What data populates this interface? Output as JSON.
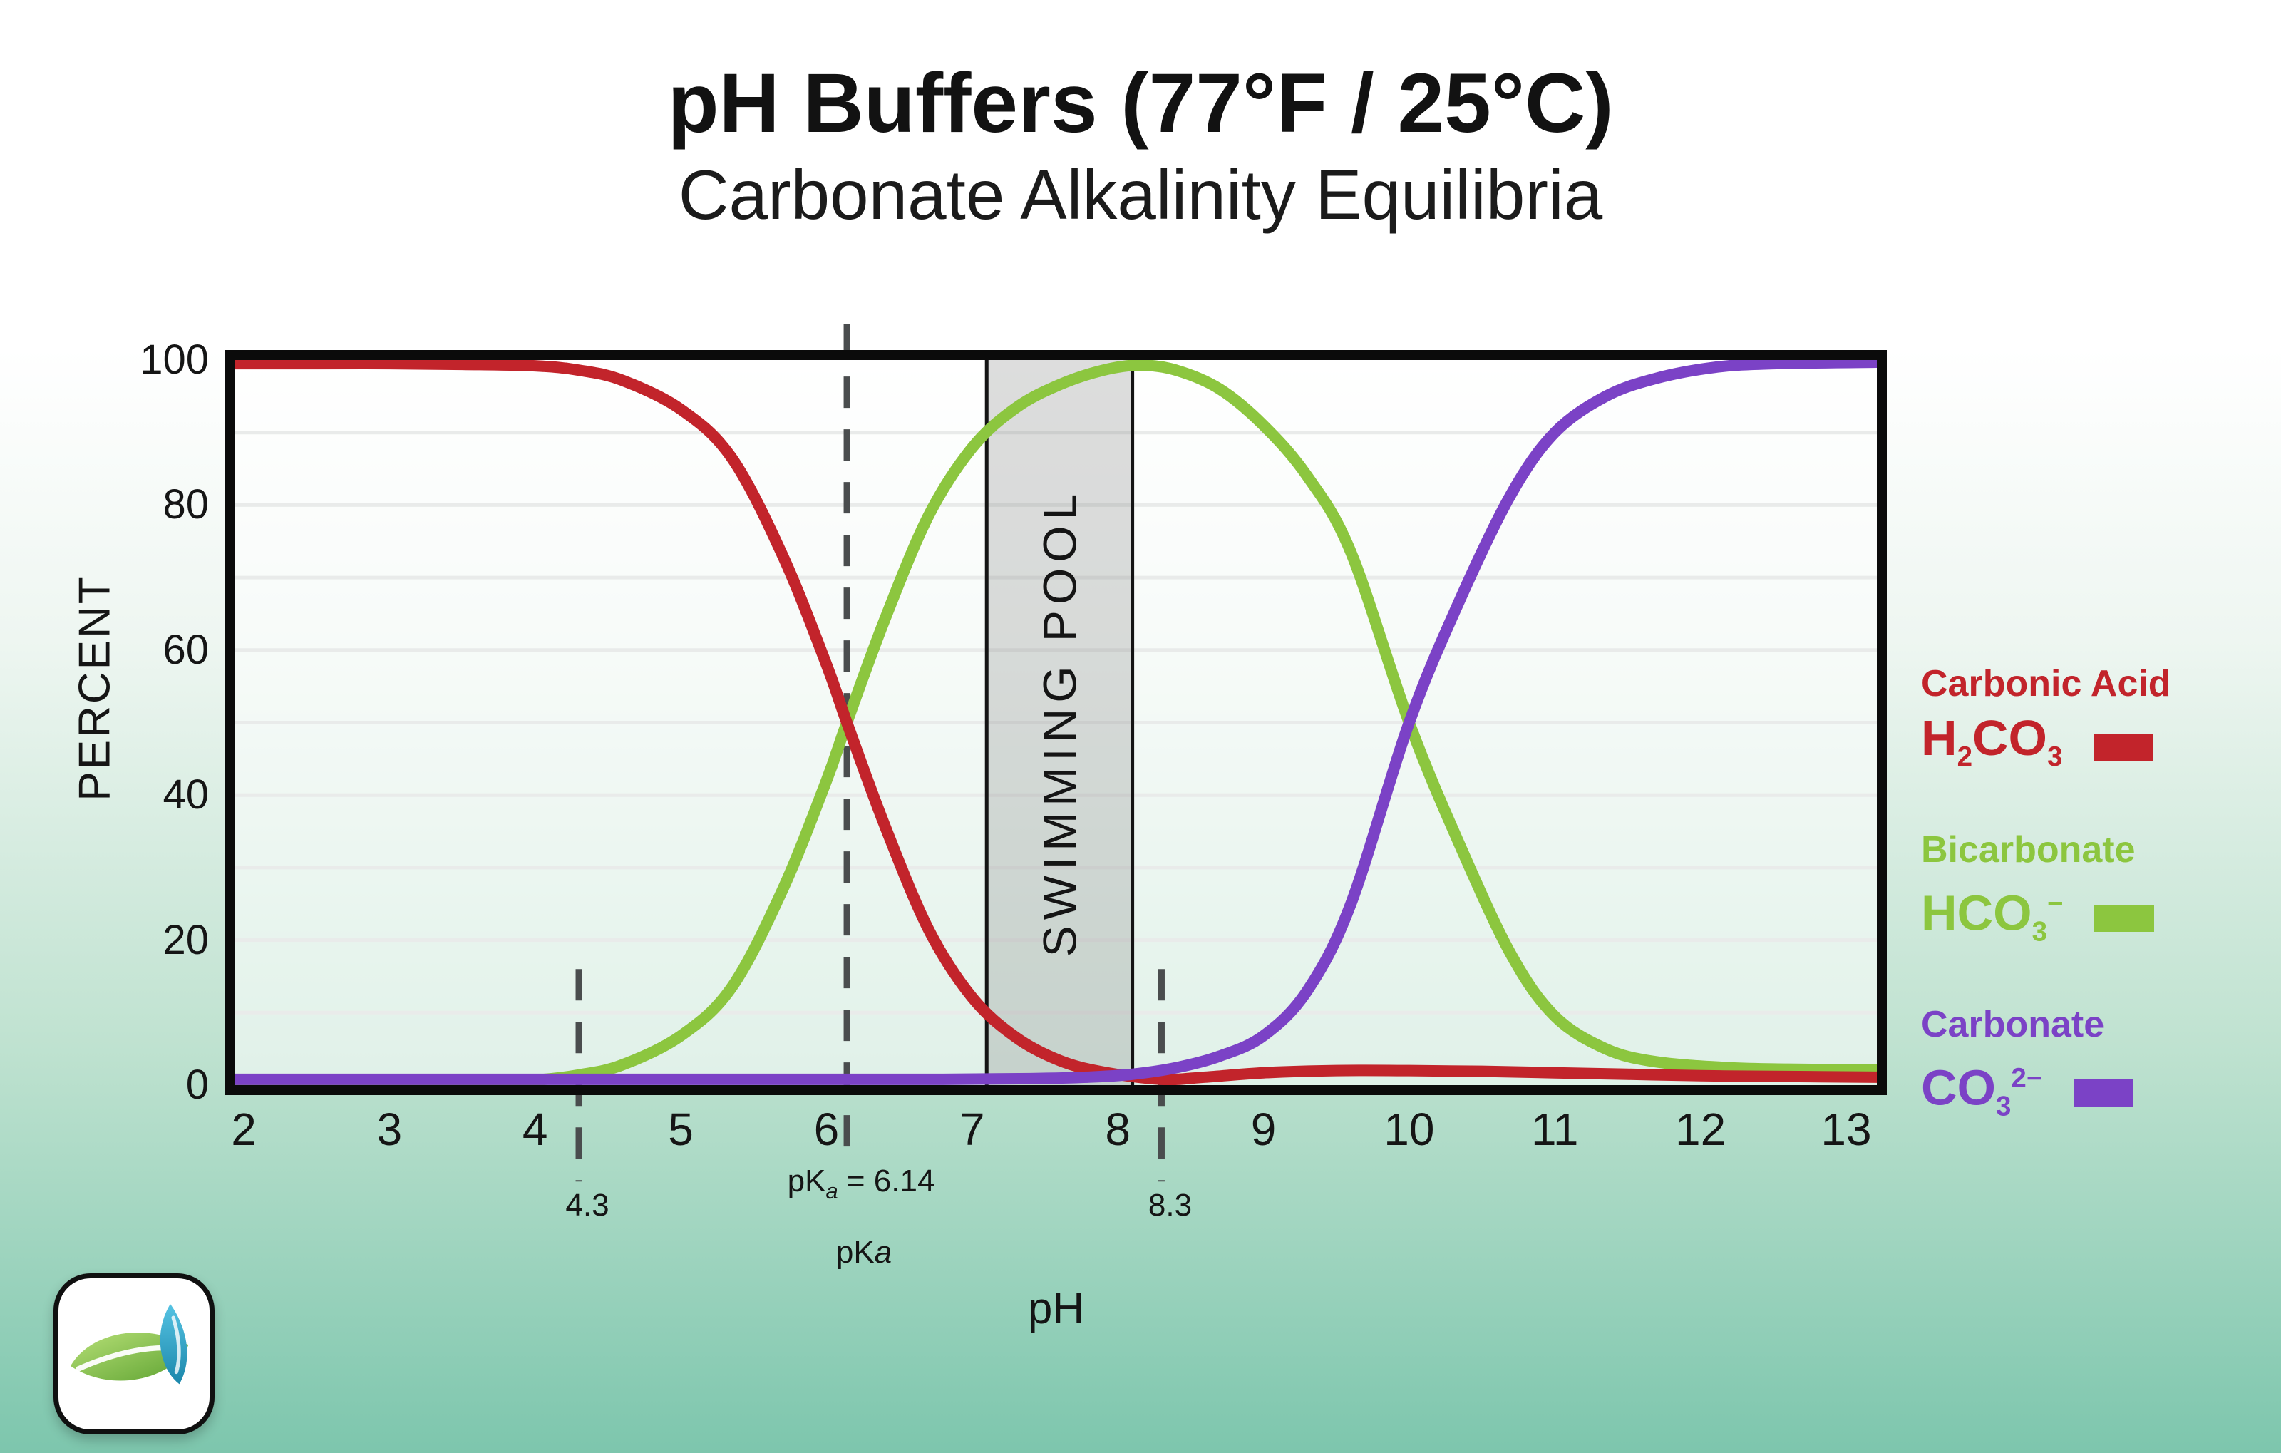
{
  "chart_data": {
    "type": "line",
    "title": "pH Buffers (77°F / 25°C)",
    "subtitle": "Carbonate Alkalinity Equilibria",
    "xlabel": "pH",
    "ylabel": "PERCENT",
    "xlim": [
      2,
      13
    ],
    "ylim": [
      0,
      100
    ],
    "x_ticks": [
      2,
      3,
      4,
      5,
      6,
      7,
      8,
      9,
      10,
      11,
      12,
      13
    ],
    "y_ticks": [
      0,
      20,
      40,
      60,
      80,
      100
    ],
    "gridlines": "horizontal every 10, light gray",
    "legend_position": "right",
    "pka1": 6.14,
    "pka2": 10.0,
    "series": [
      {
        "name": "Carbonic Acid H2CO3",
        "color": "#c2242b",
        "points": [
          [
            2,
            99.5
          ],
          [
            2.5,
            99.5
          ],
          [
            3,
            99.5
          ],
          [
            3.5,
            99.4
          ],
          [
            4,
            99.2
          ],
          [
            4.3,
            98.6
          ],
          [
            4.6,
            97.2
          ],
          [
            5,
            93.2
          ],
          [
            5.35,
            86.5
          ],
          [
            5.7,
            73
          ],
          [
            6,
            58
          ],
          [
            6.14,
            50
          ],
          [
            6.4,
            35.8
          ],
          [
            6.7,
            21.5
          ],
          [
            7,
            12.1
          ],
          [
            7.3,
            6.6
          ],
          [
            7.6,
            3.4
          ],
          [
            7.9,
            1.8
          ],
          [
            8.3,
            0.8
          ],
          [
            8.6,
            1.1
          ],
          [
            9,
            1.7
          ],
          [
            9.5,
            2
          ],
          [
            10,
            2
          ],
          [
            10.5,
            1.9
          ],
          [
            11,
            1.7
          ],
          [
            11.5,
            1.5
          ],
          [
            12,
            1.3
          ],
          [
            12.5,
            1.2
          ],
          [
            13,
            1.1
          ]
        ]
      },
      {
        "name": "Bicarbonate HCO3-",
        "color": "#8cc63f",
        "points": [
          [
            2,
            0.4
          ],
          [
            3,
            0.4
          ],
          [
            3.6,
            0.5
          ],
          [
            4,
            0.7
          ],
          [
            4.3,
            1.4
          ],
          [
            4.6,
            2.8
          ],
          [
            5,
            6.8
          ],
          [
            5.35,
            13.5
          ],
          [
            5.7,
            27
          ],
          [
            6,
            42
          ],
          [
            6.14,
            50
          ],
          [
            6.4,
            64.2
          ],
          [
            6.7,
            78.5
          ],
          [
            7,
            87.9
          ],
          [
            7.3,
            93.4
          ],
          [
            7.6,
            96.6
          ],
          [
            7.9,
            98.6
          ],
          [
            8.15,
            99.3
          ],
          [
            8.4,
            98.6
          ],
          [
            8.7,
            96
          ],
          [
            9,
            91
          ],
          [
            9.3,
            84
          ],
          [
            9.6,
            73.5
          ],
          [
            10,
            50
          ],
          [
            10.35,
            33
          ],
          [
            10.7,
            18
          ],
          [
            11,
            9.5
          ],
          [
            11.35,
            5
          ],
          [
            11.7,
            3.2
          ],
          [
            12.2,
            2.4
          ],
          [
            12.6,
            2.2
          ],
          [
            13,
            2.1
          ]
        ]
      },
      {
        "name": "Carbonate CO3 2-",
        "color": "#7b42c6",
        "points": [
          [
            2,
            0.8
          ],
          [
            3,
            0.8
          ],
          [
            4,
            0.8
          ],
          [
            5,
            0.8
          ],
          [
            6,
            0.8
          ],
          [
            6.8,
            0.8
          ],
          [
            7.4,
            0.9
          ],
          [
            7.8,
            1.1
          ],
          [
            8.1,
            1.5
          ],
          [
            8.4,
            2.4
          ],
          [
            8.7,
            4
          ],
          [
            9,
            6.8
          ],
          [
            9.3,
            13
          ],
          [
            9.6,
            25
          ],
          [
            10,
            50
          ],
          [
            10.35,
            67
          ],
          [
            10.7,
            81.5
          ],
          [
            11,
            90
          ],
          [
            11.35,
            95
          ],
          [
            11.7,
            97.5
          ],
          [
            12.1,
            99
          ],
          [
            12.5,
            99.5
          ],
          [
            13,
            99.7
          ]
        ]
      }
    ],
    "annotations": {
      "pool_band": {
        "label": "SWIMMING POOL",
        "ph_from": 7.1,
        "ph_to": 8.1
      },
      "dashed_lines": [
        {
          "ph": 4.3,
          "label": "4.3",
          "top_pct": 16,
          "bottom_pct": -13.3
        },
        {
          "ph": 6.14,
          "label_parts": {
            "pre": "pK",
            "sub": "a",
            "post": " = 6.14"
          },
          "top_pct": 105,
          "bottom_pct": -10.6
        },
        {
          "ph": 8.3,
          "label": "8.3",
          "top_pct": 16,
          "bottom_pct": -13.3
        }
      ],
      "pka_caption_parts": {
        "pre": "pK",
        "italic": "a"
      }
    }
  },
  "legend": {
    "items": [
      {
        "name": "Carbonic Acid",
        "formula": [
          [
            "H",
            ""
          ],
          [
            "2",
            "sub"
          ],
          [
            "CO",
            ""
          ],
          [
            "3",
            "sub"
          ]
        ],
        "color": "#c2242b"
      },
      {
        "name": "Bicarbonate",
        "formula": [
          [
            "HCO",
            ""
          ],
          [
            "3",
            "sub"
          ],
          [
            "−",
            "sup"
          ]
        ],
        "color": "#8cc63f"
      },
      {
        "name": "Carbonate",
        "formula": [
          [
            "CO",
            ""
          ],
          [
            "3",
            "sub"
          ],
          [
            "2−",
            "sup"
          ]
        ],
        "color": "#7b42c6"
      }
    ]
  },
  "colors": {
    "plot_border": "#0b0b0b",
    "gridline": "#e9ebea",
    "dashed_line": "#4a4d4e",
    "pool_band_fill": "rgba(125,125,125,0.26)",
    "pool_band_border": "#141414",
    "background_bottom": "#7dc6ad"
  },
  "logo": {
    "icon": "green-leaf-and-blue-drop"
  }
}
